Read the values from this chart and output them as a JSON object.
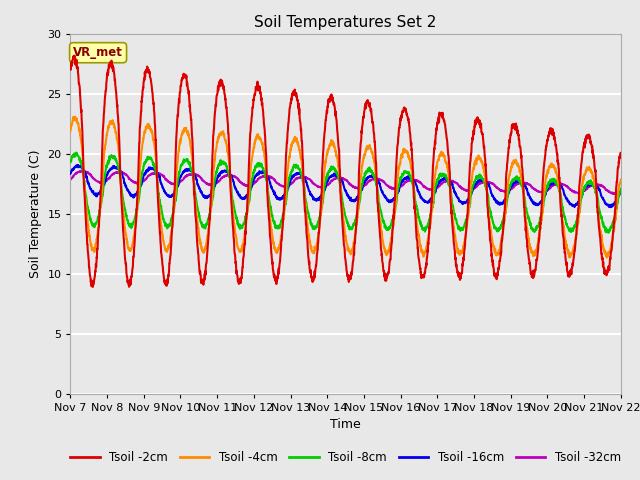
{
  "title": "Soil Temperatures Set 2",
  "xlabel": "Time",
  "ylabel": "Soil Temperature (C)",
  "ylim": [
    0,
    30
  ],
  "yticks": [
    0,
    5,
    10,
    15,
    20,
    25,
    30
  ],
  "xtick_labels": [
    "Nov 7",
    "Nov 8",
    "Nov 9",
    "Nov 10",
    "Nov 11",
    "Nov 12",
    "Nov 13",
    "Nov 14",
    "Nov 15",
    "Nov 16",
    "Nov 17",
    "Nov 18",
    "Nov 19",
    "Nov 20",
    "Nov 21",
    "Nov 22"
  ],
  "series": [
    {
      "label": "Tsoil -2cm",
      "color": "#dd0000"
    },
    {
      "label": "Tsoil -4cm",
      "color": "#ff8c00"
    },
    {
      "label": "Tsoil -8cm",
      "color": "#00cc00"
    },
    {
      "label": "Tsoil -16cm",
      "color": "#0000ee"
    },
    {
      "label": "Tsoil -32cm",
      "color": "#bb00bb"
    }
  ],
  "annotation_text": "VR_met",
  "annotation_fg": "#880000",
  "annotation_bg": "#ffffaa",
  "annotation_edge": "#999900",
  "fig_bg": "#e8e8e8",
  "plot_bg_light": "#ebebeb",
  "plot_bg_dark": "#d8d8d8",
  "grid_color": "#ffffff",
  "title_fontsize": 11,
  "axis_label_fontsize": 9,
  "tick_fontsize": 8,
  "legend_fontsize": 8.5,
  "linewidth": 1.5
}
